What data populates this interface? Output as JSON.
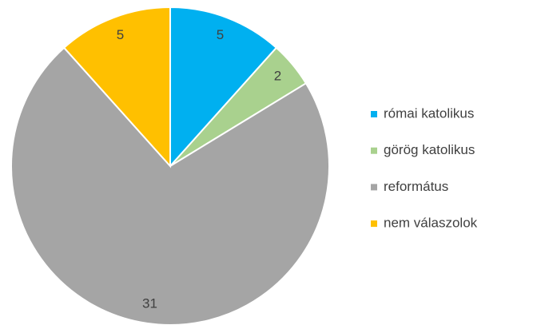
{
  "chart_data": {
    "type": "pie",
    "categories": [
      "római katolikus",
      "görög katolikus",
      "református",
      "nem válaszolok"
    ],
    "values": [
      5,
      2,
      31,
      5
    ],
    "colors": [
      "#00b0f0",
      "#a9d18e",
      "#a5a5a5",
      "#ffc000"
    ],
    "legend": "right"
  }
}
